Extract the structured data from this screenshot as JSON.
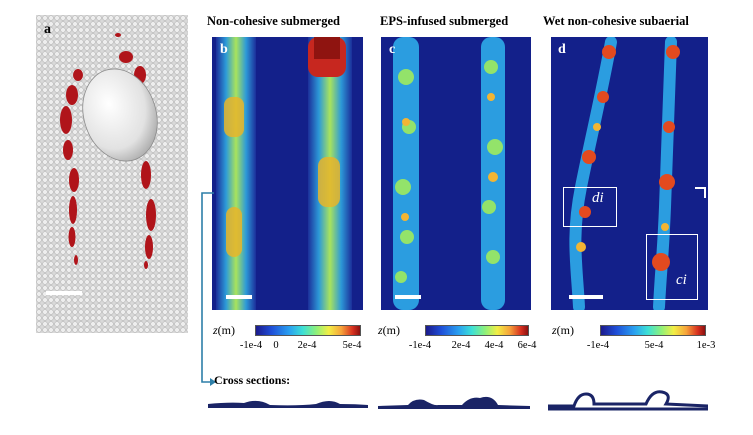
{
  "panels": {
    "a": {
      "letter": "a"
    },
    "b": {
      "letter": "b",
      "title": "Non-cohesive submerged",
      "colorbar": {
        "label_var": "z",
        "label_unit": "(m)",
        "ticks": [
          "-1e-4",
          "0",
          "2e-4",
          "5e-4"
        ]
      }
    },
    "c": {
      "letter": "c",
      "title": "EPS-infused submerged",
      "colorbar": {
        "label_var": "z",
        "label_unit": "(m)",
        "ticks": [
          "-1e-4",
          "2e-4",
          "4e-4",
          "6e-4"
        ]
      }
    },
    "d": {
      "letter": "d",
      "title": "Wet non-cohesive subaerial",
      "colorbar": {
        "label_var": "z",
        "label_unit": "(m)",
        "ticks": [
          "-1e-4",
          "5e-4",
          "1e-3"
        ]
      },
      "insets": [
        "di",
        "ci"
      ]
    }
  },
  "cross_sections": {
    "title": "Cross sections:"
  }
}
